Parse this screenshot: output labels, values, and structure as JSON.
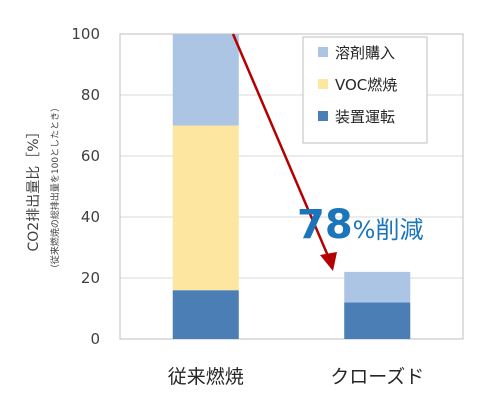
{
  "chart_data": {
    "type": "bar",
    "stacked": true,
    "categories": [
      "従来燃焼",
      "クローズド"
    ],
    "series": [
      {
        "name": "装置運転",
        "values": [
          16,
          12
        ],
        "color": "#4a7eb4"
      },
      {
        "name": "VOC燃焼",
        "values": [
          54,
          0
        ],
        "color": "#fde6a0"
      },
      {
        "name": "溶剤購入",
        "values": [
          30,
          10
        ],
        "color": "#adc5e4"
      }
    ],
    "legend_order": [
      "溶剤購入",
      "VOC燃焼",
      "装置運転"
    ],
    "ylim": [
      0,
      100
    ],
    "yticks": [
      0,
      20,
      40,
      60,
      80,
      100
    ],
    "ylabel": "CO2排出量比［%］",
    "ylabel_sub": "（従来燃焼の総排出量を100としたとき）",
    "xlabel": "",
    "grid": true,
    "legend_position": "top-right",
    "annotation": {
      "number": "78",
      "suffix": "%削減",
      "color": "#1b75bb",
      "arrow_color": "#b40000"
    }
  }
}
